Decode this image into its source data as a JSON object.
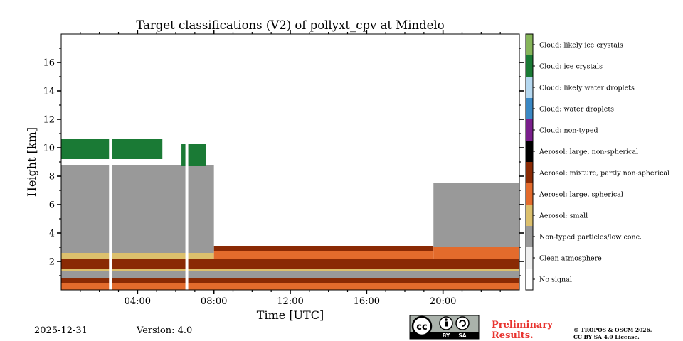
{
  "chart_data": {
    "type": "heatmap",
    "title": "Target classifications (V2) of pollyxt_cpv at Mindelo",
    "xlabel": "Time [UTC]",
    "ylabel": "Height [km]",
    "xlim": [
      0,
      24
    ],
    "ylim": [
      0,
      18
    ],
    "x_ticks": [
      4,
      8,
      12,
      16,
      20
    ],
    "x_tick_labels": [
      "04:00",
      "08:00",
      "12:00",
      "16:00",
      "20:00"
    ],
    "y_ticks": [
      2,
      4,
      6,
      8,
      10,
      12,
      14,
      16
    ],
    "y_tick_labels": [
      "2",
      "4",
      "6",
      "8",
      "10",
      "12",
      "14",
      "16"
    ],
    "data_gaps_hours": [
      2.58,
      6.58
    ],
    "layers": [
      {
        "class": "Aerosol: large, spherical",
        "x0": 0,
        "x1": 24,
        "y0": 0,
        "y1": 0.5
      },
      {
        "class": "Aerosol: mixture, partly non-spherical",
        "x0": 0,
        "x1": 24,
        "y0": 0.5,
        "y1": 0.8
      },
      {
        "class": "Non-typed particles/low conc.",
        "x0": 0,
        "x1": 24,
        "y0": 0.8,
        "y1": 1.3
      },
      {
        "class": "Aerosol: small",
        "x0": 0,
        "x1": 24,
        "y0": 1.3,
        "y1": 1.5
      },
      {
        "class": "Aerosol: mixture, partly non-spherical",
        "x0": 0,
        "x1": 24,
        "y0": 1.5,
        "y1": 2.2
      },
      {
        "class": "Aerosol: small",
        "x0": 0,
        "x1": 8,
        "y0": 2.2,
        "y1": 2.6
      },
      {
        "class": "Aerosol: large, spherical",
        "x0": 8,
        "x1": 19.5,
        "y0": 2.2,
        "y1": 2.7
      },
      {
        "class": "Aerosol: mixture, partly non-spherical",
        "x0": 8,
        "x1": 19.5,
        "y0": 2.7,
        "y1": 3.1
      },
      {
        "class": "Aerosol: large, spherical",
        "x0": 19.5,
        "x1": 24,
        "y0": 2.2,
        "y1": 3.0
      },
      {
        "class": "Non-typed particles/low conc.",
        "x0": 0,
        "x1": 8,
        "y0": 2.6,
        "y1": 8.8
      },
      {
        "class": "Non-typed particles/low conc.",
        "x0": 19.5,
        "x1": 24,
        "y0": 3.0,
        "y1": 7.5
      },
      {
        "class": "Cloud: ice crystals",
        "x0": 0,
        "x1": 5.3,
        "y0": 9.2,
        "y1": 10.6
      },
      {
        "class": "Cloud: ice crystals",
        "x0": 6.3,
        "x1": 7.6,
        "y0": 8.7,
        "y1": 10.3
      }
    ],
    "legend": [
      {
        "label": "Cloud: likely ice crystals",
        "color": "#86b55a"
      },
      {
        "label": "Cloud: ice crystals",
        "color": "#1a7a35"
      },
      {
        "label": "Cloud: likely water droplets",
        "color": "#b5d8f0"
      },
      {
        "label": "Cloud: water droplets",
        "color": "#3b88c4"
      },
      {
        "label": "Cloud: non-typed",
        "color": "#7a1f8c"
      },
      {
        "label": "Aerosol: large, non-spherical",
        "color": "#000000"
      },
      {
        "label": "Aerosol: mixture, partly non-spherical",
        "color": "#8a2a04"
      },
      {
        "label": "Aerosol: large, spherical",
        "color": "#e36b2c"
      },
      {
        "label": "Aerosol: small",
        "color": "#dcc06d"
      },
      {
        "label": "Non-typed particles/low conc.",
        "color": "#999999"
      },
      {
        "label": "Clean atmosphere",
        "color": "#f0f0f0"
      },
      {
        "label": "No signal",
        "color": "#ffffff"
      }
    ]
  },
  "footer": {
    "date": "2025-12-31",
    "version": "Version: 4.0",
    "preliminary_line1": "Preliminary",
    "preliminary_line2": "Results.",
    "copyright_line1": "© TROPOS & OSCM 2026.",
    "copyright_line2": "CC BY SA 4.0 License.",
    "license_badge": {
      "cc": "cc",
      "by": "BY",
      "sa": "SA"
    }
  }
}
